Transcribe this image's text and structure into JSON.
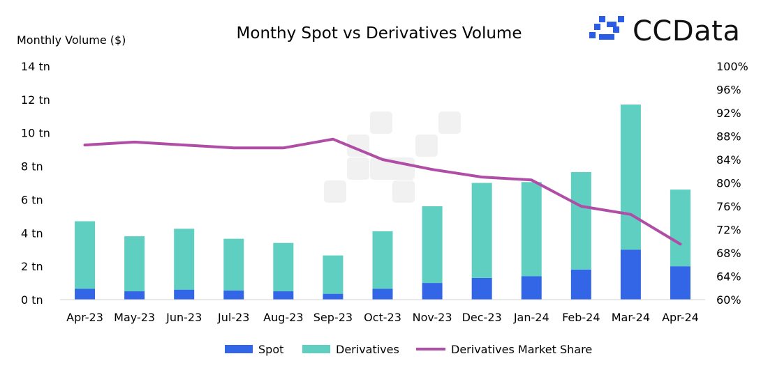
{
  "brand": {
    "name": "CCData",
    "logo_color": "#2b5ce6"
  },
  "chart_data": {
    "type": "bar",
    "title": "Monthy Spot vs Derivatives Volume",
    "ylabel": "Monthly Volume ($)",
    "categories": [
      "Apr-23",
      "May-23",
      "Jun-23",
      "Jul-23",
      "Aug-23",
      "Sep-23",
      "Oct-23",
      "Nov-23",
      "Dec-23",
      "Jan-24",
      "Feb-24",
      "Mar-24",
      "Apr-24"
    ],
    "stacked": true,
    "ylim": [
      0,
      14
    ],
    "yticks": [
      "0 tn",
      "2 tn",
      "4 tn",
      "6 tn",
      "8 tn",
      "10 tn",
      "12 tn",
      "14 tn"
    ],
    "y2lim": [
      60,
      100
    ],
    "y2ticks": [
      "60%",
      "64%",
      "68%",
      "72%",
      "76%",
      "80%",
      "84%",
      "88%",
      "92%",
      "96%",
      "100%"
    ],
    "grid": false,
    "legend_position": "bottom",
    "series": [
      {
        "name": "Spot",
        "type": "bar",
        "color": "#3366e6",
        "values": [
          0.65,
          0.5,
          0.6,
          0.55,
          0.5,
          0.35,
          0.65,
          1.0,
          1.3,
          1.4,
          1.8,
          3.0,
          2.0
        ]
      },
      {
        "name": "Derivatives",
        "type": "bar",
        "color": "#5fcfc2",
        "values": [
          4.05,
          3.3,
          3.65,
          3.1,
          2.9,
          2.3,
          3.45,
          4.6,
          5.7,
          5.65,
          5.85,
          8.7,
          4.6
        ]
      },
      {
        "name": "Derivatives Market Share",
        "type": "line",
        "axis": "right",
        "color": "#b04da6",
        "values": [
          86.5,
          87.0,
          86.5,
          86.0,
          86.0,
          87.5,
          84.0,
          82.3,
          81.0,
          80.5,
          76.0,
          74.6,
          69.5
        ]
      }
    ]
  }
}
